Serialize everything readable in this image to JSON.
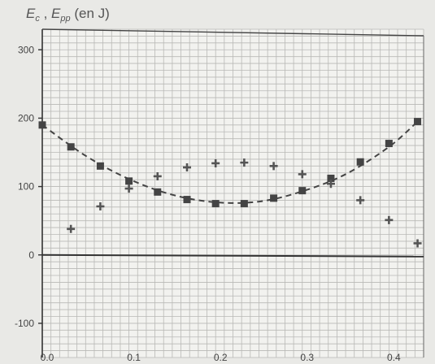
{
  "chart_data": {
    "type": "scatter",
    "title": {
      "main1": "E",
      "sub1": "c",
      "sep": " , ",
      "main2": "E",
      "sub2": "pp",
      "unit": " (en J)"
    },
    "xlabel": "",
    "ylabel": "",
    "xlim": [
      0.0,
      0.44
    ],
    "ylim": [
      -150,
      330
    ],
    "x_ticks": [
      0.0,
      0.1,
      0.2,
      0.3,
      0.4
    ],
    "x_tick_labels": [
      "0.0",
      "0.1",
      "0.2",
      "0.3",
      "0.4"
    ],
    "y_ticks": [
      300,
      200,
      100,
      0,
      -100
    ],
    "y_tick_labels": [
      "300",
      "200",
      "100",
      "0",
      "-100"
    ],
    "grid": true,
    "series": [
      {
        "marker": "square",
        "color": "#444444",
        "x": [
          0.0,
          0.033,
          0.067,
          0.1,
          0.133,
          0.167,
          0.2,
          0.233,
          0.267,
          0.3,
          0.333,
          0.367,
          0.4,
          0.433
        ],
        "y": [
          190,
          158,
          130,
          108,
          92,
          81,
          75,
          75,
          83,
          94,
          112,
          136,
          163,
          195
        ]
      },
      {
        "marker": "plus",
        "color": "#555555",
        "x": [
          0.033,
          0.067,
          0.1,
          0.133,
          0.167,
          0.2,
          0.233,
          0.267,
          0.3,
          0.333,
          0.367,
          0.4,
          0.433
        ],
        "y": [
          38,
          71,
          97,
          115,
          128,
          134,
          135,
          130,
          118,
          104,
          80,
          51,
          17
        ]
      }
    ],
    "trend": {
      "style": "dashed",
      "color": "#444444",
      "x": [
        0.0,
        0.05,
        0.1,
        0.15,
        0.2,
        0.25,
        0.3,
        0.35,
        0.4,
        0.433
      ],
      "y": [
        190,
        145,
        111,
        88,
        77,
        78,
        93,
        118,
        158,
        195
      ]
    },
    "zero_line": {
      "y": 0,
      "color": "#333333"
    }
  }
}
